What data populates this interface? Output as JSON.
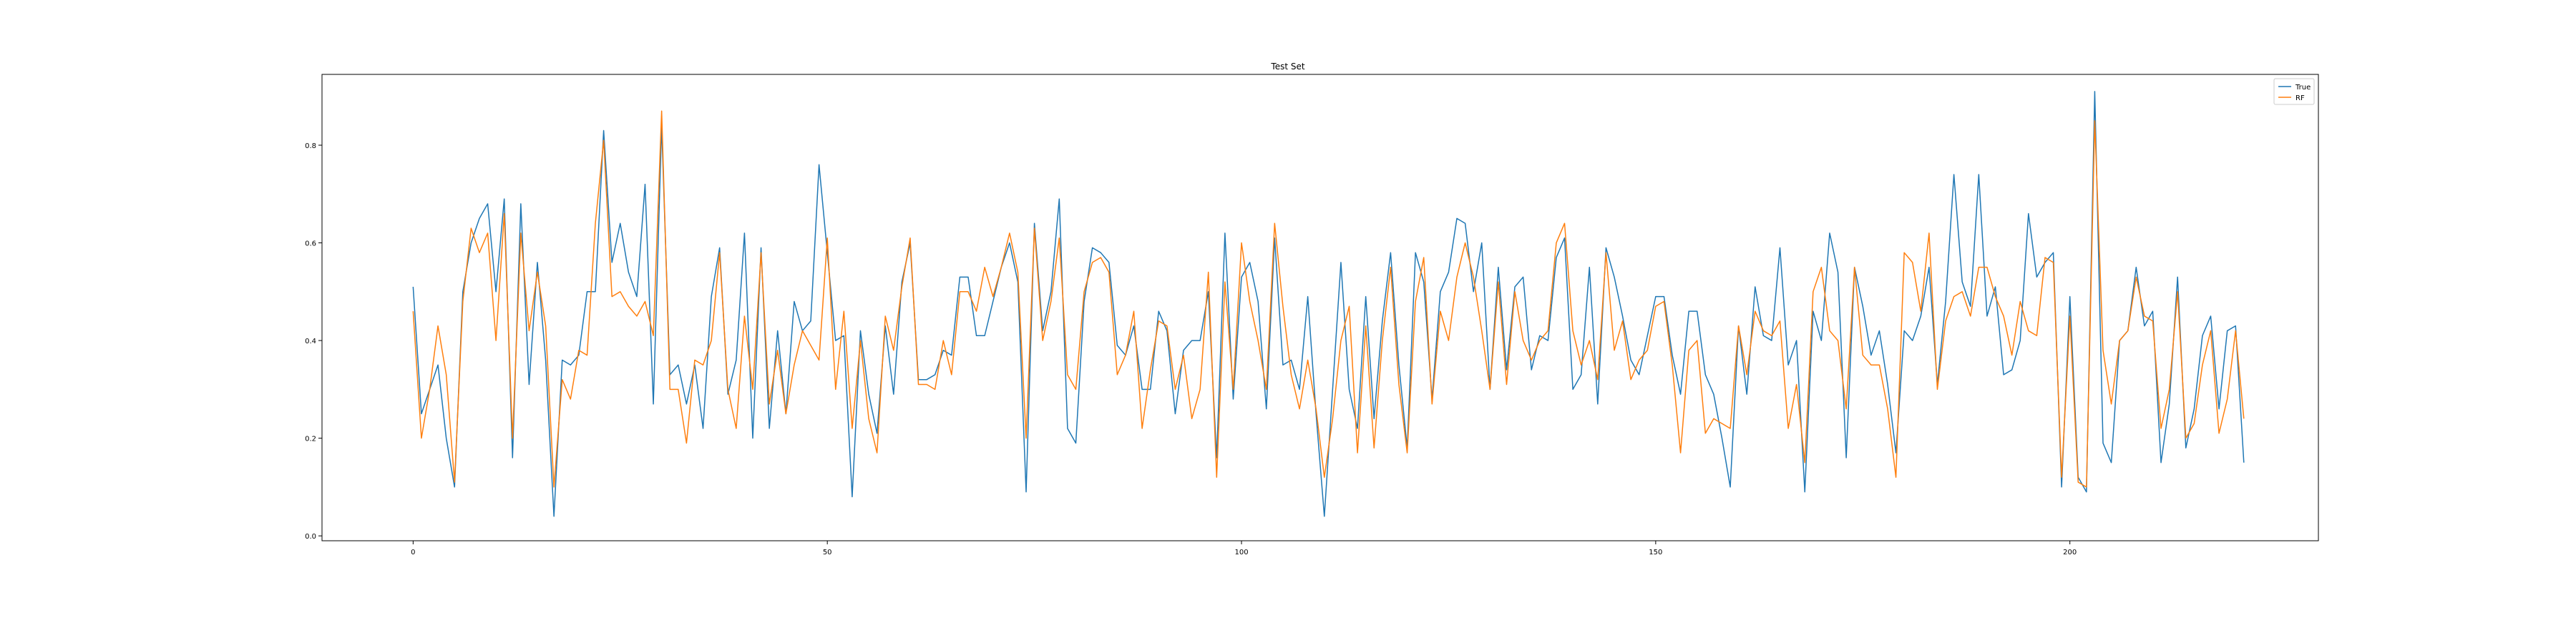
{
  "chart_data": {
    "type": "line",
    "title": "Test Set",
    "xlabel": "",
    "ylabel": "",
    "xlim": [
      -11,
      230
    ],
    "ylim": [
      -0.01,
      0.945
    ],
    "xticks": [
      0,
      50,
      100,
      150,
      200
    ],
    "yticks": [
      0.0,
      0.2,
      0.4,
      0.6,
      0.8
    ],
    "xtick_labels": [
      "0",
      "50",
      "100",
      "150",
      "200"
    ],
    "ytick_labels": [
      "0.0",
      "0.2",
      "0.4",
      "0.6",
      "0.8"
    ],
    "grid": false,
    "legend": "top-right",
    "series": [
      {
        "name": "True",
        "color": "#1f77b4",
        "values": [
          0.51,
          0.25,
          0.3,
          0.35,
          0.2,
          0.1,
          0.5,
          0.6,
          0.65,
          0.68,
          0.5,
          0.69,
          0.16,
          0.68,
          0.31,
          0.56,
          0.36,
          0.04,
          0.36,
          0.35,
          0.37,
          0.5,
          0.5,
          0.83,
          0.56,
          0.64,
          0.54,
          0.49,
          0.72,
          0.27,
          0.84,
          0.33,
          0.35,
          0.27,
          0.35,
          0.22,
          0.49,
          0.59,
          0.29,
          0.36,
          0.62,
          0.2,
          0.59,
          0.22,
          0.42,
          0.25,
          0.48,
          0.42,
          0.44,
          0.76,
          0.58,
          0.4,
          0.41,
          0.08,
          0.42,
          0.29,
          0.21,
          0.43,
          0.29,
          0.52,
          0.6,
          0.32,
          0.32,
          0.33,
          0.38,
          0.37,
          0.53,
          0.53,
          0.41,
          0.41,
          0.48,
          0.55,
          0.6,
          0.52,
          0.09,
          0.64,
          0.42,
          0.5,
          0.69,
          0.22,
          0.19,
          0.48,
          0.59,
          0.58,
          0.56,
          0.39,
          0.37,
          0.43,
          0.3,
          0.3,
          0.46,
          0.42,
          0.25,
          0.38,
          0.4,
          0.4,
          0.5,
          0.16,
          0.62,
          0.28,
          0.53,
          0.56,
          0.48,
          0.26,
          0.61,
          0.35,
          0.36,
          0.3,
          0.49,
          0.25,
          0.04,
          0.3,
          0.56,
          0.3,
          0.22,
          0.49,
          0.24,
          0.44,
          0.58,
          0.35,
          0.18,
          0.58,
          0.52,
          0.28,
          0.5,
          0.54,
          0.65,
          0.64,
          0.5,
          0.6,
          0.3,
          0.55,
          0.34,
          0.51,
          0.53,
          0.34,
          0.41,
          0.4,
          0.57,
          0.61,
          0.3,
          0.33,
          0.55,
          0.27,
          0.59,
          0.53,
          0.45,
          0.36,
          0.33,
          0.41,
          0.49,
          0.49,
          0.37,
          0.29,
          0.46,
          0.46,
          0.33,
          0.29,
          0.2,
          0.1,
          0.43,
          0.29,
          0.51,
          0.41,
          0.4,
          0.59,
          0.35,
          0.4,
          0.09,
          0.46,
          0.4,
          0.62,
          0.54,
          0.16,
          0.55,
          0.47,
          0.37,
          0.42,
          0.31,
          0.17,
          0.42,
          0.4,
          0.45,
          0.55,
          0.31,
          0.48,
          0.74,
          0.52,
          0.47,
          0.74,
          0.45,
          0.51,
          0.33,
          0.34,
          0.4,
          0.66,
          0.53,
          0.56,
          0.58,
          0.1,
          0.49,
          0.12,
          0.09,
          0.91,
          0.19,
          0.15,
          0.4,
          0.42,
          0.55,
          0.43,
          0.46,
          0.15,
          0.27,
          0.53,
          0.18,
          0.26,
          0.41,
          0.45,
          0.26,
          0.42,
          0.43,
          0.15
        ]
      },
      {
        "name": "RF",
        "color": "#ff7f0e",
        "values": [
          0.46,
          0.2,
          0.3,
          0.43,
          0.33,
          0.11,
          0.48,
          0.63,
          0.58,
          0.62,
          0.4,
          0.66,
          0.2,
          0.62,
          0.42,
          0.54,
          0.43,
          0.1,
          0.32,
          0.28,
          0.38,
          0.37,
          0.64,
          0.81,
          0.49,
          0.5,
          0.47,
          0.45,
          0.48,
          0.41,
          0.87,
          0.3,
          0.3,
          0.19,
          0.36,
          0.35,
          0.4,
          0.58,
          0.3,
          0.22,
          0.45,
          0.3,
          0.58,
          0.27,
          0.38,
          0.25,
          0.35,
          0.42,
          0.39,
          0.36,
          0.61,
          0.3,
          0.46,
          0.22,
          0.4,
          0.24,
          0.17,
          0.45,
          0.38,
          0.51,
          0.61,
          0.31,
          0.31,
          0.3,
          0.4,
          0.33,
          0.5,
          0.5,
          0.46,
          0.55,
          0.49,
          0.55,
          0.62,
          0.54,
          0.2,
          0.63,
          0.4,
          0.48,
          0.61,
          0.33,
          0.3,
          0.5,
          0.56,
          0.57,
          0.54,
          0.33,
          0.37,
          0.46,
          0.22,
          0.34,
          0.44,
          0.43,
          0.3,
          0.37,
          0.24,
          0.3,
          0.54,
          0.12,
          0.52,
          0.3,
          0.6,
          0.48,
          0.4,
          0.3,
          0.64,
          0.47,
          0.33,
          0.26,
          0.36,
          0.26,
          0.12,
          0.24,
          0.4,
          0.47,
          0.17,
          0.43,
          0.18,
          0.4,
          0.55,
          0.31,
          0.17,
          0.48,
          0.57,
          0.27,
          0.46,
          0.4,
          0.53,
          0.6,
          0.53,
          0.42,
          0.3,
          0.52,
          0.31,
          0.5,
          0.4,
          0.36,
          0.4,
          0.42,
          0.6,
          0.64,
          0.42,
          0.35,
          0.4,
          0.32,
          0.58,
          0.38,
          0.44,
          0.32,
          0.36,
          0.38,
          0.47,
          0.48,
          0.35,
          0.17,
          0.38,
          0.4,
          0.21,
          0.24,
          0.23,
          0.22,
          0.43,
          0.33,
          0.46,
          0.42,
          0.41,
          0.44,
          0.22,
          0.31,
          0.15,
          0.5,
          0.55,
          0.42,
          0.4,
          0.26,
          0.55,
          0.37,
          0.35,
          0.35,
          0.26,
          0.12,
          0.58,
          0.56,
          0.46,
          0.62,
          0.3,
          0.44,
          0.49,
          0.5,
          0.45,
          0.55,
          0.55,
          0.49,
          0.45,
          0.37,
          0.48,
          0.42,
          0.41,
          0.57,
          0.56,
          0.12,
          0.45,
          0.11,
          0.1,
          0.85,
          0.38,
          0.27,
          0.4,
          0.42,
          0.53,
          0.45,
          0.44,
          0.22,
          0.3,
          0.5,
          0.2,
          0.23,
          0.35,
          0.42,
          0.21,
          0.28,
          0.42,
          0.24
        ]
      }
    ]
  }
}
